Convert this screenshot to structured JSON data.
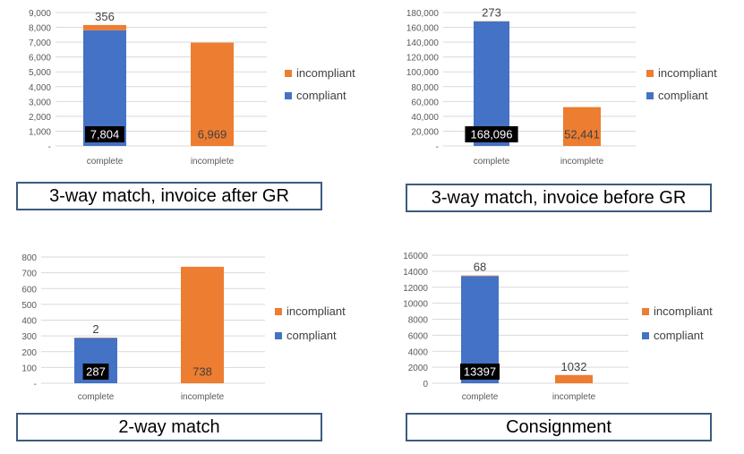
{
  "captions": [
    "3-way match, invoice after GR",
    "3-way match, invoice before GR",
    "2-way match",
    "Consignment"
  ],
  "colors": {
    "compliant": "#4472c4",
    "incompliant": "#ed7d31",
    "label_box": "#000000",
    "grid": "#d9d9d9"
  },
  "chart_data": [
    {
      "type": "bar",
      "stacked": true,
      "categories": [
        "complete",
        "incomplete"
      ],
      "series": [
        {
          "name": "compliant",
          "values": [
            7804,
            0
          ]
        },
        {
          "name": "incompliant",
          "values": [
            356,
            6969
          ]
        }
      ],
      "data_labels": {
        "compliant": [
          "7,804",
          null
        ],
        "incompliant": [
          "356",
          "6,969"
        ]
      },
      "ylim": [
        0,
        9000
      ],
      "yticks": [
        "-",
        "1,000",
        "2,000",
        "3,000",
        "4,000",
        "5,000",
        "6,000",
        "7,000",
        "8,000",
        "9,000"
      ],
      "ytick_values": [
        0,
        1000,
        2000,
        3000,
        4000,
        5000,
        6000,
        7000,
        8000,
        9000
      ],
      "legend": [
        "incompliant",
        "compliant"
      ],
      "legend_position": "right",
      "grid": true
    },
    {
      "type": "bar",
      "stacked": true,
      "categories": [
        "complete",
        "incomplete"
      ],
      "series": [
        {
          "name": "compliant",
          "values": [
            168096,
            0
          ]
        },
        {
          "name": "incompliant",
          "values": [
            273,
            52441
          ]
        }
      ],
      "data_labels": {
        "compliant": [
          "168,096",
          null
        ],
        "incompliant": [
          "273",
          "52,441"
        ]
      },
      "ylim": [
        0,
        180000
      ],
      "yticks": [
        "-",
        "20,000",
        "40,000",
        "60,000",
        "80,000",
        "100,000",
        "120,000",
        "140,000",
        "160,000",
        "180,000"
      ],
      "ytick_values": [
        0,
        20000,
        40000,
        60000,
        80000,
        100000,
        120000,
        140000,
        160000,
        180000
      ],
      "legend": [
        "incompliant",
        "compliant"
      ],
      "legend_position": "right",
      "grid": true
    },
    {
      "type": "bar",
      "stacked": true,
      "categories": [
        "complete",
        "incomplete"
      ],
      "series": [
        {
          "name": "compliant",
          "values": [
            287,
            0
          ]
        },
        {
          "name": "incompliant",
          "values": [
            2,
            738
          ]
        }
      ],
      "data_labels": {
        "compliant": [
          "287",
          null
        ],
        "incompliant": [
          "2",
          "738"
        ]
      },
      "ylim": [
        0,
        800
      ],
      "yticks": [
        "-",
        "100",
        "200",
        "300",
        "400",
        "500",
        "600",
        "700",
        "800"
      ],
      "ytick_values": [
        0,
        100,
        200,
        300,
        400,
        500,
        600,
        700,
        800
      ],
      "legend": [
        "incompliant",
        "compliant"
      ],
      "legend_position": "right",
      "grid": true
    },
    {
      "type": "bar",
      "stacked": true,
      "categories": [
        "complete",
        "incomplete"
      ],
      "series": [
        {
          "name": "compliant",
          "values": [
            13397,
            0
          ]
        },
        {
          "name": "incompliant",
          "values": [
            68,
            1032
          ]
        }
      ],
      "data_labels": {
        "compliant": [
          "13397",
          null
        ],
        "incompliant": [
          "68",
          "1032"
        ]
      },
      "ylim": [
        0,
        16000
      ],
      "yticks": [
        "0",
        "2000",
        "4000",
        "6000",
        "8000",
        "10000",
        "12000",
        "14000",
        "16000"
      ],
      "ytick_values": [
        0,
        2000,
        4000,
        6000,
        8000,
        10000,
        12000,
        14000,
        16000
      ],
      "legend": [
        "incompliant",
        "compliant"
      ],
      "legend_position": "right",
      "grid": true
    }
  ]
}
